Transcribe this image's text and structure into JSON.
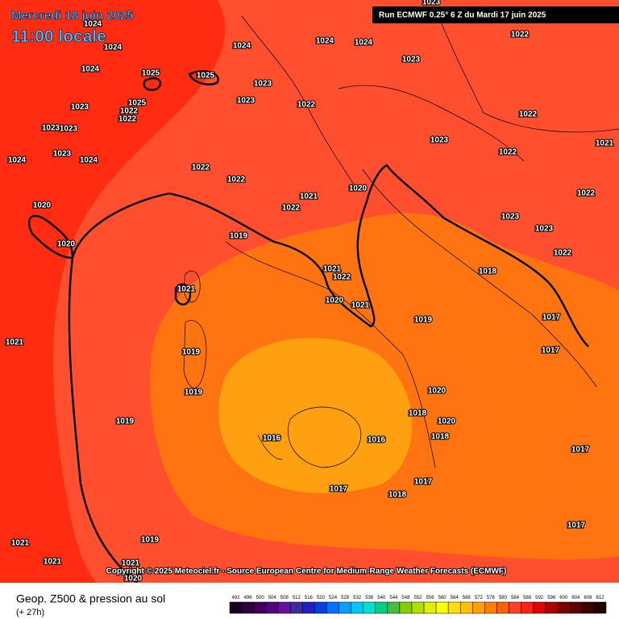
{
  "header": {
    "date": "Mercredi 18 juin 2025",
    "time": "11:00 locale",
    "run": "Run ECMWF 0.25° 6 Z du Mardi 17 juin 2025"
  },
  "footer": {
    "copyright": "Copyright © 2025 Meteociel.fr - Source European Centre for Medium-Range Weather Forecasts (ECMWF)",
    "product": "Geop. Z500 & pression au sol",
    "lead": "(+ 27h)"
  },
  "isobar_labels": [
    1024,
    1024,
    1024,
    1024,
    1024,
    1024,
    1025,
    1025,
    1025,
    1023,
    1023,
    1023,
    1023,
    1023,
    1023,
    1023,
    1023,
    1023,
    1024,
    1024,
    1022,
    1022,
    1022,
    1022,
    1022,
    1022,
    1022,
    1022,
    1022,
    1022,
    1022,
    1022,
    1021,
    1021,
    1021,
    1021,
    1021,
    1021,
    1021,
    1021,
    1020,
    1020,
    1020,
    1020,
    1020,
    1020,
    1020,
    1019,
    1019,
    1019,
    1019,
    1019,
    1019,
    1018,
    1018,
    1018,
    1018,
    1017,
    1017,
    1017,
    1017,
    1017,
    1017,
    1016,
    1016,
    1023,
    1023,
    1021
  ],
  "scale": {
    "labels": [
      492,
      496,
      500,
      504,
      508,
      512,
      516,
      520,
      524,
      528,
      532,
      536,
      540,
      544,
      548,
      552,
      556,
      560,
      564,
      568,
      572,
      576,
      580,
      584,
      588,
      592,
      596,
      600,
      604,
      608,
      612
    ],
    "colors": [
      "#1a0020",
      "#2d0040",
      "#400060",
      "#550080",
      "#6a10a0",
      "#3a2a9a",
      "#2020c0",
      "#0040e0",
      "#0070ff",
      "#00a0ff",
      "#00c8ff",
      "#00e0d0",
      "#00d080",
      "#40c040",
      "#80d000",
      "#b0e000",
      "#e0f000",
      "#ffff00",
      "#ffe000",
      "#ffc000",
      "#ffa000",
      "#ff8000",
      "#ff6000",
      "#ff4020",
      "#ff2010",
      "#e00000",
      "#b00000",
      "#800000",
      "#600000",
      "#400000",
      "#200000"
    ]
  }
}
